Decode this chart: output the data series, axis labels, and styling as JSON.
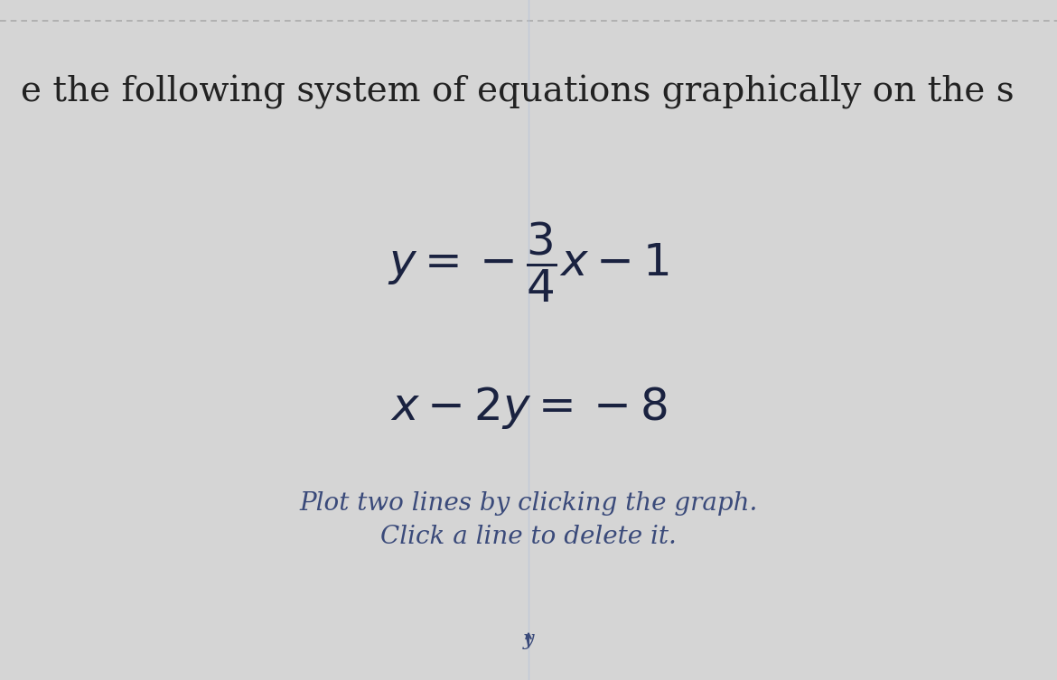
{
  "background_color": "#d5d5d5",
  "dashed_line_color": "#aaaaaa",
  "title_text": "e the following system of equations graphically on the s",
  "title_fontsize": 28,
  "title_color": "#222222",
  "instruction_line1": "Plot two lines by clicking the graph.",
  "instruction_line2": "Click a line to delete it.",
  "instruction_color": "#3a4a7a",
  "instruction_fontsize": 20,
  "eq_color": "#1a2240",
  "eq_fontsize": 36,
  "ylabel_text": "y",
  "ylabel_color": "#3a4a7a",
  "ylabel_fontsize": 16,
  "vertical_line_color": "#b8c4d8",
  "vertical_line_alpha": 0.7
}
